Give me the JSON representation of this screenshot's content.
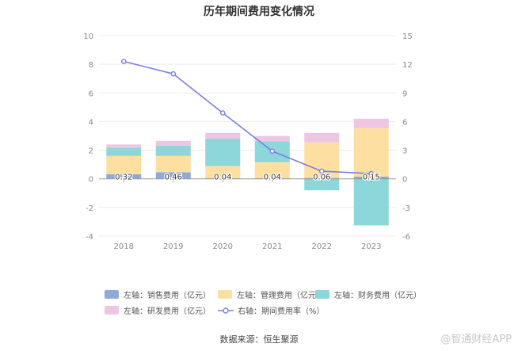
{
  "chart_data": {
    "type": "bar",
    "title": "历年期间费用变化情况",
    "categories": [
      "2018",
      "2019",
      "2020",
      "2021",
      "2022",
      "2023"
    ],
    "stacked": true,
    "series": [
      {
        "name": "左轴：销售费用（亿元）",
        "axis": "left",
        "color": "#8fa9d8",
        "values": [
          0.32,
          0.46,
          0.04,
          0.04,
          0.06,
          0.15
        ]
      },
      {
        "name": "左轴：管理费用（亿元）",
        "axis": "left",
        "color": "#fedfa2",
        "values": [
          1.28,
          1.14,
          0.86,
          1.12,
          2.49,
          3.4
        ]
      },
      {
        "name": "左轴：财务费用（亿元）",
        "axis": "left",
        "color": "#8dd6d9",
        "values": [
          0.58,
          0.72,
          1.88,
          1.45,
          -0.8,
          -3.25
        ]
      },
      {
        "name": "左轴：研发费用（亿元）",
        "axis": "left",
        "color": "#ecc6e3",
        "values": [
          0.22,
          0.33,
          0.42,
          0.38,
          0.65,
          0.65
        ]
      },
      {
        "name": "右轴：期间费用率（%）",
        "axis": "right",
        "type": "line",
        "color": "#7b7fe0",
        "values": [
          12.3,
          11.0,
          6.9,
          2.9,
          0.8,
          0.55
        ]
      }
    ],
    "data_labels": [
      "0.32",
      "0.46",
      "0.04",
      "0.04",
      "0.06",
      "0.15"
    ],
    "y_left": {
      "lim": [
        -4,
        10
      ],
      "ticks": [
        -4,
        -2,
        0,
        2,
        4,
        6,
        8,
        10
      ],
      "tick_labels": [
        "-4",
        "-2",
        "0",
        "2",
        "4",
        "6",
        "8",
        "10"
      ]
    },
    "y_right": {
      "lim": [
        -6,
        15
      ],
      "ticks": [
        -6,
        -3,
        0,
        3,
        6,
        9,
        12,
        15
      ],
      "tick_labels": [
        "-6",
        "-3",
        "0",
        "3",
        "6",
        "9",
        "12",
        "15"
      ]
    },
    "grid": true,
    "legend_position": "bottom"
  },
  "source": "数据来源：恒生聚源",
  "watermark": "@智通财经APP"
}
